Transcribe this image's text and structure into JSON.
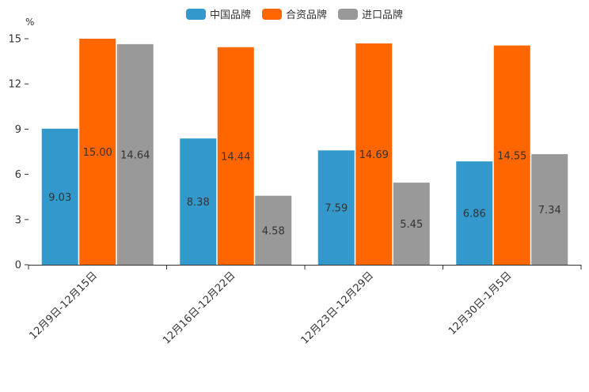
{
  "chart_data": {
    "type": "bar",
    "unit": "%",
    "categories": [
      "12月9日-12月15日",
      "12月16日-12月22日",
      "12月23日-12月29日",
      "12月30日-1月5日"
    ],
    "series": [
      {
        "name": "中国品牌",
        "color": "#3399CC",
        "values": [
          9.03,
          8.38,
          7.59,
          6.86
        ],
        "labels": [
          "9.03",
          "8.38",
          "7.59",
          "6.86"
        ]
      },
      {
        "name": "合资品牌",
        "color": "#FF6600",
        "values": [
          15.0,
          14.44,
          14.69,
          14.55
        ],
        "labels": [
          "15.00",
          "14.44",
          "14.69",
          "14.55"
        ]
      },
      {
        "name": "进口品牌",
        "color": "#999999",
        "values": [
          14.64,
          4.58,
          5.45,
          7.34
        ],
        "labels": [
          "14.64",
          "4.58",
          "5.45",
          "7.34"
        ]
      }
    ],
    "ylim": [
      0,
      15
    ],
    "yticks": [
      "0",
      "3",
      "6",
      "9",
      "12",
      "15"
    ],
    "legend": "top-center",
    "grid": false
  }
}
